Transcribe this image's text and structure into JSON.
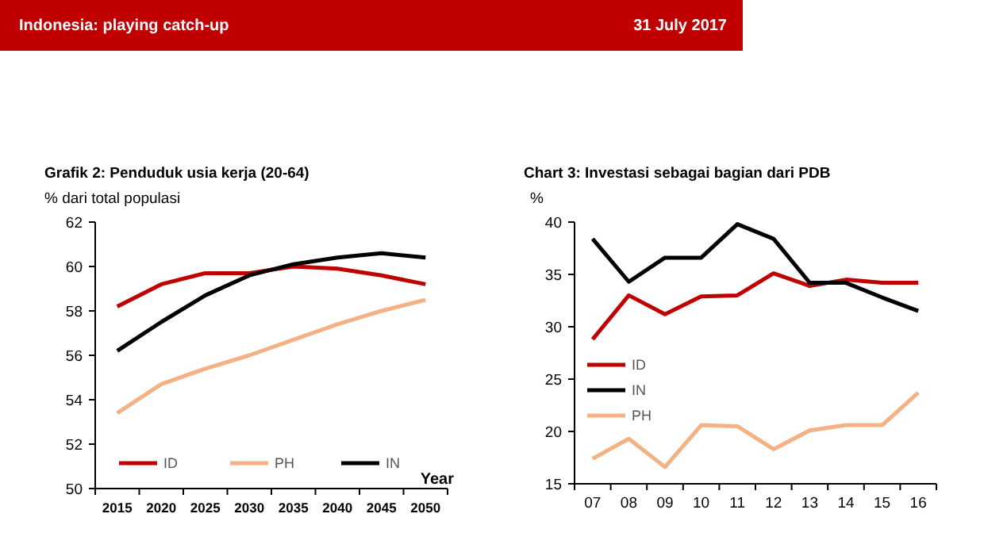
{
  "chart_data": [
    {
      "type": "line",
      "title": "Grafik 2: Penduduk usia kerja (20-64)",
      "ylabel": "% dari total populasi",
      "xlabel": "Year",
      "annotations": [
        "Indonesia: playing catch-up",
        "31 July 2017"
      ],
      "categories": [
        "2015",
        "2020",
        "2025",
        "2030",
        "2035",
        "2040",
        "2045",
        "2050"
      ],
      "series": [
        {
          "name": "ID",
          "color": "#c00000",
          "values": [
            58.2,
            59.2,
            59.7,
            59.7,
            60.0,
            59.9,
            59.6,
            59.2
          ]
        },
        {
          "name": "PH",
          "color": "#f4b183",
          "values": [
            53.4,
            54.7,
            55.4,
            56.0,
            56.7,
            57.4,
            58.0,
            58.5
          ]
        },
        {
          "name": "IN",
          "color": "#000000",
          "values": [
            56.2,
            57.5,
            58.7,
            59.6,
            60.1,
            60.4,
            60.6,
            60.4
          ]
        }
      ],
      "ylim": [
        50,
        62
      ],
      "yticks": [
        50,
        52,
        54,
        56,
        58,
        60,
        62
      ],
      "grid": false,
      "legend": "bottom",
      "marker": "none"
    },
    {
      "type": "line",
      "title": "Chart 3: Investasi sebagai bagian dari PDB",
      "ylabel": "%",
      "categories": [
        "07",
        "08",
        "09",
        "10",
        "11",
        "12",
        "13",
        "14",
        "15",
        "16"
      ],
      "series": [
        {
          "name": "ID",
          "color": "#c00000",
          "values": [
            28.8,
            33.0,
            31.2,
            32.9,
            33.0,
            35.1,
            33.9,
            34.5,
            34.2,
            34.2
          ]
        },
        {
          "name": "IN",
          "color": "#000000",
          "values": [
            38.4,
            34.3,
            36.6,
            36.6,
            39.8,
            38.4,
            34.2,
            34.2,
            32.8,
            31.5
          ]
        },
        {
          "name": "PH",
          "color": "#f4b183",
          "values": [
            17.4,
            19.3,
            16.6,
            20.6,
            20.5,
            18.3,
            20.1,
            20.6,
            20.6,
            23.7
          ]
        }
      ],
      "ylim": [
        15,
        40
      ],
      "yticks": [
        15,
        20,
        25,
        30,
        35,
        40
      ],
      "grid": false,
      "legend": "left",
      "marker": "none"
    }
  ]
}
